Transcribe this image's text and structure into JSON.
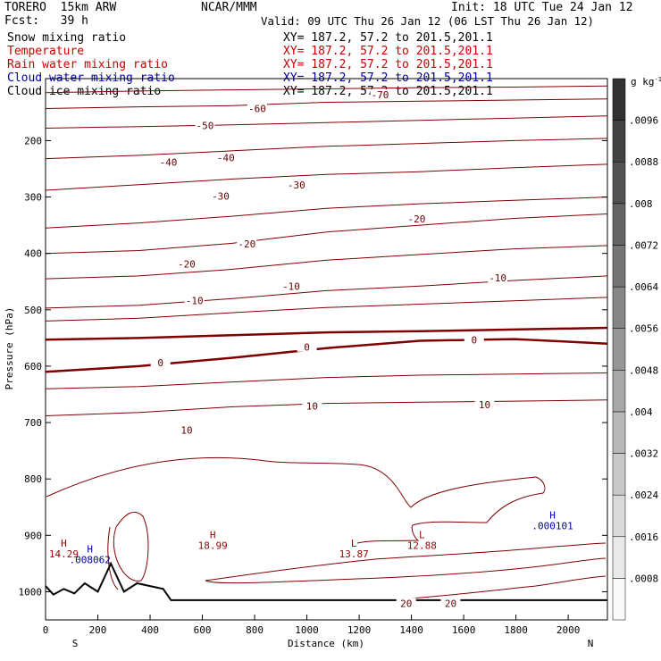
{
  "header": {
    "model": "TORERO  15km ARW",
    "center": "NCAR/MMM",
    "init": "Init: 18 UTC Tue 24 Jan 12",
    "fcst": "Fcst:   39 h",
    "valid": "Valid: 09 UTC Thu 26 Jan 12 (06 LST Thu 26 Jan 12)"
  },
  "fields": [
    {
      "name": "Snow mixing ratio",
      "xy": "XY= 187.2, 57.2 to 201.5,201.1",
      "color": "#000000"
    },
    {
      "name": "Temperature",
      "xy": "XY= 187.2, 57.2 to 201.5,201.1",
      "color": "#cc0000"
    },
    {
      "name": "Rain water mixing ratio",
      "xy": "XY= 187.2, 57.2 to 201.5,201.1",
      "color": "#cc0000"
    },
    {
      "name": "Cloud water mixing ratio",
      "xy": "XY= 187.2, 57.2 to 201.5,201.1",
      "color": "#0000aa"
    },
    {
      "name": "Cloud ice mixing ratio",
      "xy": "XY= 187.2, 57.2 to 201.5,201.1",
      "color": "#000000"
    }
  ],
  "chart_data": {
    "type": "cross-section contour",
    "xlabel": "Distance (km)",
    "ylabel": "Pressure (hPa)",
    "xlim": [
      0,
      2150
    ],
    "ylim": [
      1050,
      90
    ],
    "x_ticks": [
      0,
      200,
      400,
      600,
      800,
      1000,
      1200,
      1400,
      1600,
      1800,
      2000
    ],
    "y_ticks": [
      200,
      300,
      400,
      500,
      600,
      700,
      800,
      900,
      1000
    ],
    "x_end_labels": {
      "left": "S",
      "right": "N"
    },
    "colorbar": {
      "unit": "g kg",
      "unit_exp": "-1",
      "ticks": [
        ".0008",
        ".0016",
        ".0024",
        ".0032",
        ".004",
        ".0048",
        ".0056",
        ".0064",
        ".0072",
        ".008",
        ".0088",
        ".0096"
      ]
    },
    "contour_labels": [
      {
        "text": "-70",
        "x": 1280,
        "p": 120
      },
      {
        "text": "-60",
        "x": 810,
        "p": 145
      },
      {
        "text": "-50",
        "x": 610,
        "p": 175
      },
      {
        "text": "-40",
        "x": 690,
        "p": 232
      },
      {
        "text": "-40",
        "x": 470,
        "p": 240
      },
      {
        "text": "-30",
        "x": 960,
        "p": 280
      },
      {
        "text": "-30",
        "x": 670,
        "p": 300
      },
      {
        "text": "-20",
        "x": 1420,
        "p": 340
      },
      {
        "text": "-20",
        "x": 770,
        "p": 385
      },
      {
        "text": "-20",
        "x": 540,
        "p": 420
      },
      {
        "text": "-10",
        "x": 1730,
        "p": 445
      },
      {
        "text": "-10",
        "x": 940,
        "p": 460
      },
      {
        "text": "-10",
        "x": 570,
        "p": 485
      },
      {
        "text": "0",
        "x": 1640,
        "p": 555
      },
      {
        "text": "0",
        "x": 1000,
        "p": 568
      },
      {
        "text": "0",
        "x": 440,
        "p": 595
      },
      {
        "text": "10",
        "x": 1680,
        "p": 670
      },
      {
        "text": "10",
        "x": 1020,
        "p": 672
      },
      {
        "text": "10",
        "x": 540,
        "p": 715
      },
      {
        "text": "20",
        "x": 1550,
        "p": 1022
      },
      {
        "text": "20",
        "x": 1380,
        "p": 1022
      }
    ],
    "isotherm_lines": [
      {
        "value": -70,
        "p": [
          115,
          112,
          110,
          108,
          106,
          105,
          103
        ]
      },
      {
        "value": -60,
        "p": [
          143,
          140,
          138,
          132,
          130,
          128,
          126
        ]
      },
      {
        "value": -50,
        "p": [
          178,
          175,
          172,
          168,
          164,
          160,
          156
        ]
      },
      {
        "value": -40,
        "p": [
          232,
          226,
          218,
          210,
          205,
          200,
          196
        ]
      },
      {
        "value": -30,
        "p": [
          288,
          278,
          268,
          260,
          255,
          248,
          242
        ]
      },
      {
        "value": -20,
        "p": [
          355,
          346,
          334,
          320,
          312,
          306,
          300
        ]
      },
      {
        "value": -20,
        "p": [
          400,
          395,
          382,
          362,
          350,
          338,
          330
        ]
      },
      {
        "value": -10,
        "p": [
          445,
          440,
          428,
          412,
          402,
          392,
          386
        ]
      },
      {
        "value": -10,
        "p": [
          497,
          492,
          480,
          466,
          458,
          448,
          440
        ]
      },
      {
        "value": -10,
        "p": [
          520,
          515,
          505,
          496,
          490,
          484,
          478
        ]
      },
      {
        "value": 0,
        "p": [
          553,
          550,
          545,
          540,
          538,
          535,
          532
        ]
      },
      {
        "value": 0,
        "p": [
          610,
          600,
          585,
          568,
          555,
          552,
          560
        ]
      },
      {
        "value": 10,
        "p": [
          640,
          636,
          628,
          620,
          616,
          614,
          612
        ]
      },
      {
        "value": 10,
        "p": [
          688,
          682,
          672,
          666,
          664,
          662,
          660
        ]
      }
    ],
    "terrain": {
      "x": [
        0,
        30,
        70,
        110,
        150,
        200,
        250,
        300,
        350,
        400,
        450,
        480,
        600,
        1000,
        1500,
        2000,
        2150
      ],
      "p": [
        990,
        1005,
        995,
        1003,
        985,
        1000,
        950,
        1000,
        985,
        990,
        995,
        1015,
        1015,
        1015,
        1015,
        1015,
        1015
      ]
    },
    "extrema": [
      {
        "letter": "H",
        "value": "14.29",
        "x": 70,
        "p": 920,
        "color": "#990000"
      },
      {
        "letter": "H",
        "value": ".008062",
        "x": 170,
        "p": 930,
        "color": "#0000aa"
      },
      {
        "letter": "H",
        "value": "18.99",
        "x": 640,
        "p": 905,
        "color": "#990000"
      },
      {
        "letter": "L",
        "value": "13.87",
        "x": 1180,
        "p": 920,
        "color": "#990000"
      },
      {
        "letter": "L",
        "value": "12.88",
        "x": 1440,
        "p": 905,
        "color": "#990000"
      },
      {
        "letter": "H",
        "value": ".000101",
        "x": 1940,
        "p": 870,
        "color": "#0000aa"
      }
    ]
  }
}
